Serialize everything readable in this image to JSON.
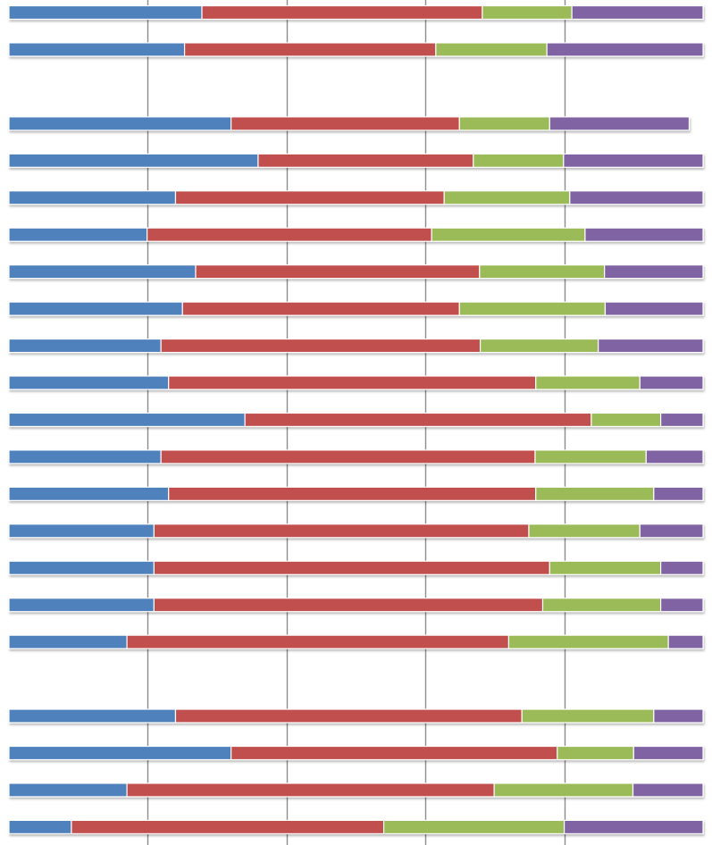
{
  "chart_data": {
    "type": "bar",
    "orientation": "horizontal",
    "stacked": "percent",
    "xlim": [
      0,
      100
    ],
    "grid": "vertical",
    "colors": [
      "#4f81bd",
      "#c0504d",
      "#9bbb59",
      "#8064a2"
    ],
    "rows": [
      [
        27.8,
        40.4,
        12.9,
        18.9
      ],
      [
        25.3,
        36.2,
        16.0,
        22.5
      ],
      null,
      [
        32.0,
        32.9,
        13.0,
        20.1
      ],
      [
        35.9,
        31.0,
        13.0,
        20.1
      ],
      [
        24.0,
        38.7,
        18.1,
        19.2
      ],
      [
        19.9,
        41.0,
        22.1,
        17.0
      ],
      [
        26.9,
        40.9,
        18.0,
        14.2
      ],
      [
        25.0,
        39.9,
        21.0,
        14.1
      ],
      [
        21.9,
        46.0,
        17.0,
        15.1
      ],
      [
        23.0,
        52.9,
        15.0,
        9.1
      ],
      [
        34.0,
        49.9,
        10.0,
        6.1
      ],
      [
        21.9,
        53.9,
        16.0,
        8.2
      ],
      [
        23.0,
        52.9,
        17.0,
        7.1
      ],
      [
        20.9,
        54.0,
        16.0,
        9.1
      ],
      [
        20.9,
        57.0,
        16.0,
        6.1
      ],
      [
        20.9,
        56.0,
        17.0,
        6.1
      ],
      [
        17.0,
        55.0,
        23.0,
        5.0
      ],
      null,
      [
        24.0,
        49.9,
        19.0,
        7.1
      ],
      [
        32.0,
        47.0,
        11.0,
        10.0
      ],
      [
        17.0,
        52.9,
        20.0,
        10.1
      ],
      [
        9.0,
        45.0,
        26.0,
        20.0
      ]
    ]
  }
}
